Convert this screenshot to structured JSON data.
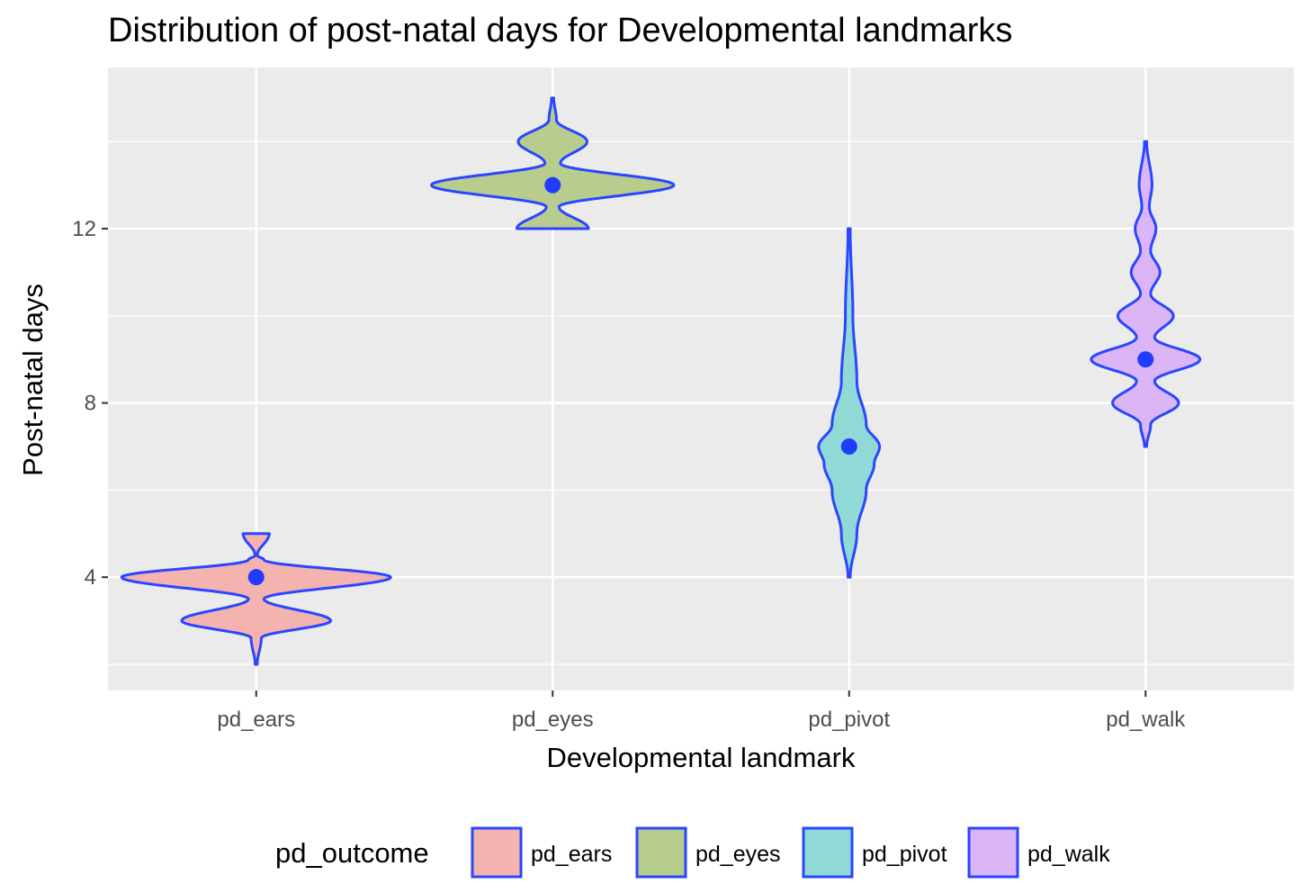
{
  "chart_data": {
    "type": "violin",
    "title": "Distribution of post-natal days for Developmental landmarks",
    "xlabel": "Developmental landmark",
    "ylabel": "Post-natal days",
    "ylim": [
      1.4,
      15.7
    ],
    "yticks": [
      4,
      8,
      12
    ],
    "grid": true,
    "legend": {
      "title": "pd_outcome",
      "placement": "bottom"
    },
    "categories": [
      "pd_ears",
      "pd_eyes",
      "pd_pivot",
      "pd_walk"
    ],
    "series": [
      {
        "name": "pd_ears",
        "fill": "#f4b3af",
        "outline": "#2a46ff",
        "median": 4,
        "density": [
          [
            2,
            0.0
          ],
          [
            2.6,
            0.03
          ],
          [
            3,
            0.55
          ],
          [
            3.5,
            0.05
          ],
          [
            4,
            1.0
          ],
          [
            4.4,
            0.05
          ],
          [
            4.5,
            0.0
          ],
          [
            5,
            0.09
          ]
        ]
      },
      {
        "name": "pd_eyes",
        "fill": "#b8cc8e",
        "outline": "#2a46ff",
        "median": 13,
        "density": [
          [
            12,
            0.26
          ],
          [
            12.5,
            0.04
          ],
          [
            13,
            0.9
          ],
          [
            13.5,
            0.05
          ],
          [
            14,
            0.25
          ],
          [
            14.5,
            0.02
          ],
          [
            15,
            0.0
          ]
        ]
      },
      {
        "name": "pd_pivot",
        "fill": "#91d9d6",
        "outline": "#2a46ff",
        "median": 7,
        "density": [
          [
            4,
            0.0
          ],
          [
            5,
            0.05
          ],
          [
            6,
            0.12
          ],
          [
            6.6,
            0.18
          ],
          [
            7,
            0.22
          ],
          [
            7.5,
            0.12
          ],
          [
            8.5,
            0.05
          ],
          [
            10,
            0.02
          ],
          [
            12,
            0.0
          ]
        ]
      },
      {
        "name": "pd_walk",
        "fill": "#dbb5f6",
        "outline": "#2a46ff",
        "median": 9,
        "density": [
          [
            7,
            0.0
          ],
          [
            7.5,
            0.03
          ],
          [
            8,
            0.24
          ],
          [
            8.5,
            0.06
          ],
          [
            9,
            0.4
          ],
          [
            9.5,
            0.06
          ],
          [
            10,
            0.2
          ],
          [
            10.5,
            0.03
          ],
          [
            11,
            0.1
          ],
          [
            11.5,
            0.03
          ],
          [
            12,
            0.07
          ],
          [
            12.5,
            0.02
          ],
          [
            13,
            0.04
          ],
          [
            14,
            0.0
          ]
        ]
      }
    ],
    "colors": {
      "panel_background": "#ebebeb",
      "grid": "#ffffff",
      "median_point": "#1f3cff"
    }
  }
}
